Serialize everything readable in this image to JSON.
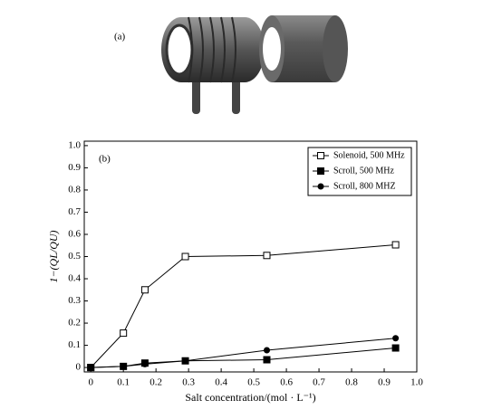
{
  "panel_a_label": "(a)",
  "chart_data": {
    "type": "line",
    "annotation": "(b)",
    "xlabel": "Salt concentration/(mol · L⁻¹)",
    "ylabel": "1−(QL/QU)",
    "xlim": [
      -0.02,
      1.0
    ],
    "ylim": [
      -0.02,
      1.02
    ],
    "xticks": [
      0,
      0.1,
      0.2,
      0.3,
      0.4,
      0.5,
      0.6,
      0.7,
      0.8,
      0.9,
      {
        "value": 1,
        "label": "1.0"
      }
    ],
    "yticks": [
      0,
      0.1,
      0.2,
      0.3,
      0.4,
      0.5,
      0.6,
      0.7,
      0.8,
      0.9,
      {
        "value": 1,
        "label": "1.0"
      }
    ],
    "legend": "top-right",
    "series": [
      {
        "name": "Solenoid, 500 MHz",
        "color": "#000000",
        "marker": "open-square",
        "x": [
          0,
          0.1,
          0.166,
          0.29,
          0.54,
          0.935
        ],
        "values": [
          0,
          0.155,
          0.35,
          0.5,
          0.505,
          0.553
        ]
      },
      {
        "name": "Scroll, 500 MHz",
        "color": "#000000",
        "marker": "square",
        "x": [
          0,
          0.1,
          0.166,
          0.29,
          0.54,
          0.935
        ],
        "values": [
          0,
          0.005,
          0.02,
          0.03,
          0.035,
          0.088
        ]
      },
      {
        "name": "Scroll, 800 MHZ",
        "color": "#000000",
        "marker": "circle",
        "x": [
          0,
          0.1,
          0.166,
          0.29,
          0.54,
          0.935
        ],
        "values": [
          0,
          0.005,
          0.015,
          0.03,
          0.078,
          0.132
        ]
      }
    ]
  }
}
